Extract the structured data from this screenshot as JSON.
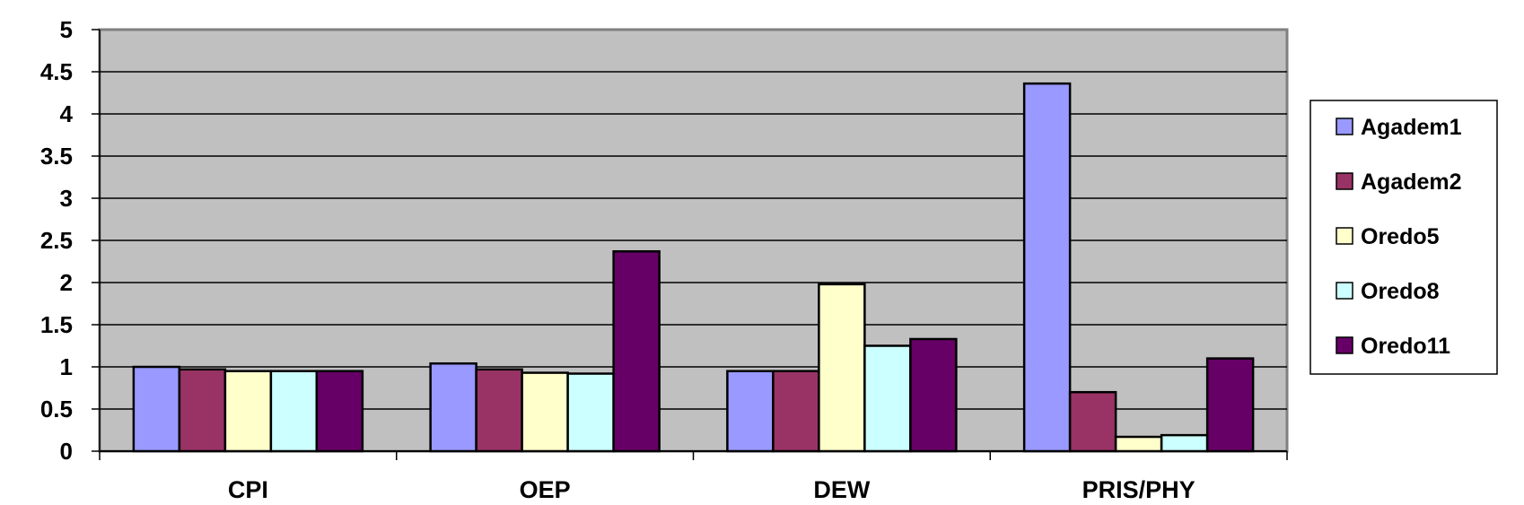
{
  "chart_data": {
    "type": "bar",
    "categories": [
      "CPI",
      "OEP",
      "DEW",
      "PRIS/PHY"
    ],
    "series": [
      {
        "name": "Agadem1",
        "color": "#9999ff",
        "values": [
          1.0,
          1.04,
          0.95,
          4.36
        ]
      },
      {
        "name": "Agadem2",
        "color": "#993366",
        "values": [
          0.97,
          0.97,
          0.95,
          0.7
        ]
      },
      {
        "name": "Oredo5",
        "color": "#ffffcc",
        "values": [
          0.95,
          0.93,
          1.98,
          0.17
        ]
      },
      {
        "name": "Oredo8",
        "color": "#ccffff",
        "values": [
          0.95,
          0.92,
          1.25,
          0.19
        ]
      },
      {
        "name": "Oredo11",
        "color": "#660066",
        "values": [
          0.95,
          2.37,
          1.33,
          1.1
        ]
      }
    ],
    "yticks": [
      "0",
      "0.5",
      "1",
      "1.5",
      "2",
      "2.5",
      "3",
      "3.5",
      "4",
      "4.5",
      "5"
    ],
    "ylim": [
      0,
      5
    ],
    "grid": true,
    "plot_background": "#c0c0c0",
    "legend_position": "right"
  }
}
